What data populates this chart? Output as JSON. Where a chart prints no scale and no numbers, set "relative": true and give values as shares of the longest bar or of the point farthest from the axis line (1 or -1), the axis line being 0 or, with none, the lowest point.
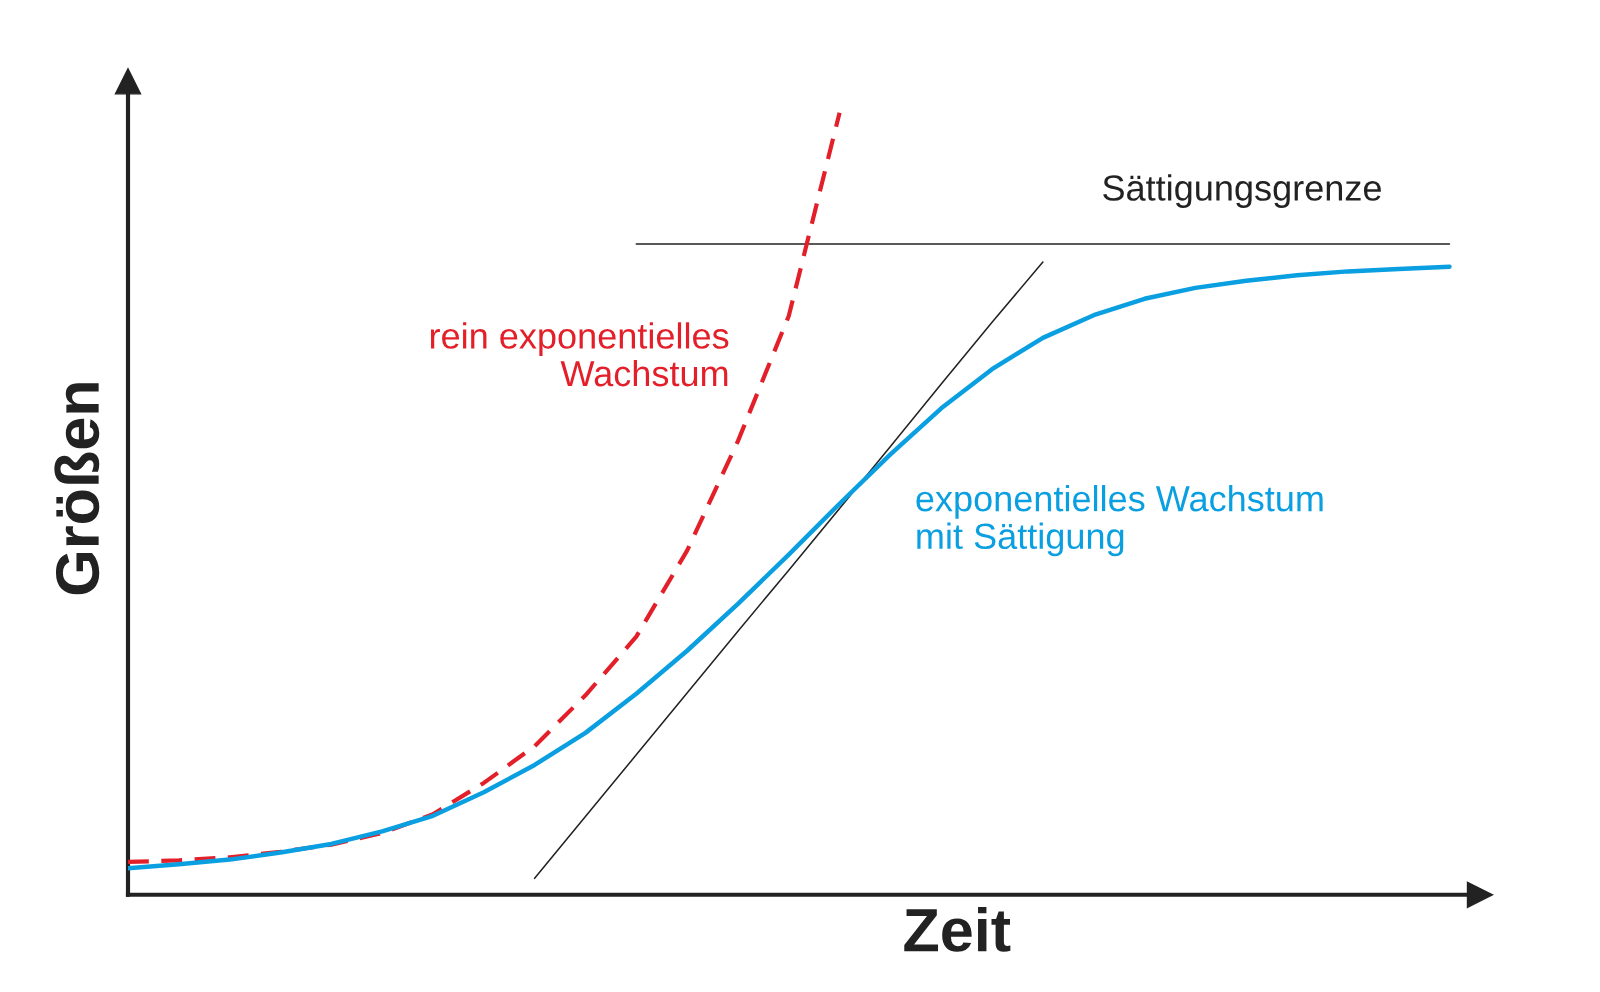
{
  "chart_data": {
    "type": "line",
    "relative": true,
    "xlabel": "Zeit",
    "ylabel": "Größen",
    "marker": "none",
    "legend": false,
    "categories": [
      null,
      null,
      null,
      null,
      null,
      null,
      null,
      null,
      null,
      null,
      null,
      null,
      null,
      null,
      null,
      null,
      null,
      null,
      null,
      null,
      null,
      null,
      null,
      null,
      null,
      null,
      null
    ],
    "series": [
      {
        "name": "rein exponentielles\nWachstum",
        "color": "#e3202a",
        "line_style": "dashed",
        "values": [
          0.042,
          0.044,
          0.048,
          0.055,
          0.064,
          0.079,
          0.103,
          0.143,
          0.19,
          0.255,
          0.33,
          0.44,
          0.58,
          0.74,
          1.0,
          null,
          null,
          null,
          null,
          null,
          null,
          null,
          null,
          null,
          null,
          null,
          null
        ]
      },
      {
        "name": "exponentielles Wachstum\nmit Sättigung",
        "color": "#0a9fe0",
        "line_style": "solid",
        "values": [
          0.034,
          0.039,
          0.045,
          0.054,
          0.065,
          0.081,
          0.101,
          0.131,
          0.166,
          0.207,
          0.257,
          0.312,
          0.372,
          0.435,
          0.5,
          0.563,
          0.622,
          0.672,
          0.712,
          0.741,
          0.762,
          0.776,
          0.785,
          0.792,
          0.797,
          0.8,
          0.803
        ]
      },
      {
        "name": "Sättigungsgrenze",
        "color": "#222222",
        "line_style": "solid",
        "values": [
          null,
          null,
          null,
          null,
          null,
          null,
          null,
          null,
          null,
          null,
          0.832,
          0.832,
          0.832,
          0.832,
          0.832,
          0.832,
          0.832,
          0.832,
          0.832,
          0.832,
          0.832,
          0.832,
          0.832,
          0.832,
          0.832,
          0.832,
          0.832
        ]
      },
      {
        "color": "#222222",
        "line_style": "solid",
        "values": [
          null,
          null,
          null,
          null,
          null,
          null,
          null,
          null,
          0.021,
          0.1,
          0.179,
          0.258,
          0.337,
          0.415,
          0.494,
          0.573,
          0.653,
          0.732,
          0.809,
          null,
          null,
          null,
          null,
          null,
          null,
          null,
          null
        ]
      }
    ]
  }
}
